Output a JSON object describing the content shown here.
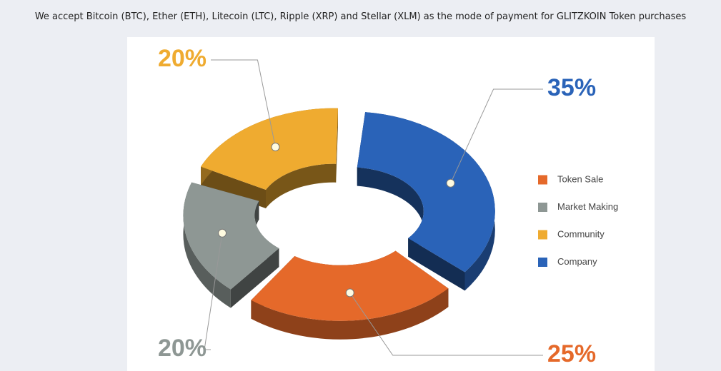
{
  "intro": "We accept Bitcoin (BTC), Ether (ETH), Litecoin (LTC), Ripple (XRP) and Stellar (XLM) as the mode of payment for GLITZKOIN Token purchases",
  "chart_data": {
    "type": "pie",
    "donut": true,
    "three_d": true,
    "categories": [
      "Token Sale",
      "Market Making",
      "Community",
      "Company"
    ],
    "values": [
      25,
      20,
      20,
      35
    ],
    "value_labels": [
      "25%",
      "20%",
      "20%",
      "35%"
    ],
    "colors": [
      "#e5692a",
      "#8e9794",
      "#efab30",
      "#2a63b8"
    ],
    "legend": "right"
  }
}
